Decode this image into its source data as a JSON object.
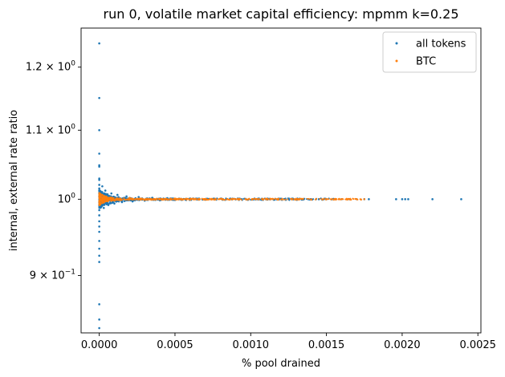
{
  "chart_data": {
    "type": "scatter",
    "title": "run 0, volatile market capital efficiency: mpmm k=0.25",
    "xlabel": "% pool drained",
    "ylabel": "internal, external rate ratio",
    "xlim": [
      -0.00012,
      0.00252
    ],
    "ylim": [
      0.8315,
      1.2665
    ],
    "yscale": "log",
    "x_ticks": [
      {
        "value": 0.0,
        "label": "0.0000"
      },
      {
        "value": 0.0005,
        "label": "0.0005"
      },
      {
        "value": 0.001,
        "label": "0.0010"
      },
      {
        "value": 0.0015,
        "label": "0.0015"
      },
      {
        "value": 0.002,
        "label": "0.0020"
      },
      {
        "value": 0.0025,
        "label": "0.0025"
      }
    ],
    "y_ticks": [
      {
        "value": 0.9,
        "mant": "9",
        "exp": "−1"
      },
      {
        "value": 1.0,
        "mant": "10",
        "exp": "0",
        "plain": true
      },
      {
        "value": 1.1,
        "mant": "1.1",
        "exp": "0"
      },
      {
        "value": 1.2,
        "mant": "1.2",
        "exp": "0"
      }
    ],
    "legend": {
      "position": "upper right",
      "entries": [
        "all tokens",
        "BTC"
      ]
    },
    "series": [
      {
        "name": "all tokens",
        "color": "#1f77b4",
        "points": [
          [
            0.0,
            1.24
          ],
          [
            0.0,
            1.15
          ],
          [
            0.0,
            1.1
          ],
          [
            0.0,
            1.065
          ],
          [
            0.0,
            1.048
          ],
          [
            0.0,
            1.046
          ],
          [
            0.0,
            1.029
          ],
          [
            0.0,
            1.027
          ],
          [
            0.0,
            1.02
          ],
          [
            0.0,
            1.015
          ],
          [
            0.0,
            1.012
          ],
          [
            0.0,
            1.008
          ],
          [
            0.0,
            1.004
          ],
          [
            0.0,
            0.996
          ],
          [
            0.0,
            0.992
          ],
          [
            0.0,
            0.985
          ],
          [
            0.0,
            0.978
          ],
          [
            0.0,
            0.97
          ],
          [
            0.0,
            0.963
          ],
          [
            0.0,
            0.956
          ],
          [
            0.0,
            0.944
          ],
          [
            0.0,
            0.934
          ],
          [
            0.0,
            0.925
          ],
          [
            0.0,
            0.917
          ],
          [
            0.0,
            0.865
          ],
          [
            0.0,
            0.847
          ],
          [
            0.0,
            0.837
          ],
          [
            2e-05,
            1.018
          ],
          [
            3e-05,
            0.988
          ],
          [
            4e-05,
            1.012
          ],
          [
            6e-05,
            0.992
          ],
          [
            8e-05,
            1.008
          ],
          [
            0.0001,
            0.994
          ],
          [
            0.00012,
            1.006
          ],
          [
            0.00015,
            0.996
          ],
          [
            0.00018,
            1.004
          ],
          [
            0.00022,
            0.997
          ],
          [
            0.00026,
            1.003
          ],
          [
            0.0003,
            0.998
          ],
          [
            0.00035,
            1.002
          ],
          [
            0.0004,
            0.9985
          ],
          [
            0.00045,
            1.0015
          ],
          [
            0.0005,
            0.999
          ],
          [
            0.0006,
            1.001
          ],
          [
            0.0007,
            0.9993
          ],
          [
            0.0008,
            1.0007
          ],
          [
            0.0009,
            1.0
          ],
          [
            0.0011,
            1.0
          ],
          [
            0.0012,
            1.0
          ],
          [
            0.00125,
            1.0
          ],
          [
            0.0013,
            1.0
          ],
          [
            0.00135,
            1.0
          ],
          [
            0.0014,
            1.0
          ],
          [
            0.00145,
            1.0
          ],
          [
            0.0015,
            1.0
          ],
          [
            0.00155,
            1.0
          ],
          [
            0.0016,
            1.0
          ],
          [
            0.00165,
            1.0
          ],
          [
            0.0017,
            1.0
          ],
          [
            0.00175,
            1.0
          ],
          [
            0.00178,
            1.0
          ],
          [
            0.00196,
            1.0
          ],
          [
            0.002,
            1.0
          ],
          [
            0.00202,
            1.0
          ],
          [
            0.00204,
            1.0
          ],
          [
            0.0022,
            1.0
          ],
          [
            0.00239,
            1.0
          ]
        ]
      },
      {
        "name": "BTC",
        "color": "#ff7f0e",
        "points": [
          [
            0.0,
            1.006
          ],
          [
            0.0,
            1.003
          ],
          [
            0.0,
            0.997
          ],
          [
            0.0,
            0.994
          ],
          [
            1e-05,
            1.004
          ],
          [
            2e-05,
            0.997
          ],
          [
            5e-05,
            1.003
          ],
          [
            0.0001,
            0.998
          ],
          [
            0.0002,
            1.002
          ],
          [
            0.0003,
            0.999
          ],
          [
            0.0005,
            1.001
          ],
          [
            0.0007,
            1.0
          ],
          [
            0.0009,
            1.0
          ],
          [
            0.0011,
            1.0
          ],
          [
            0.0013,
            1.0
          ],
          [
            0.0015,
            1.0
          ],
          [
            0.0016,
            1.0
          ],
          [
            0.00165,
            1.0
          ],
          [
            0.0017,
            1.0
          ],
          [
            0.00175,
            1.0
          ]
        ],
        "band_xmax": 0.00173
      }
    ],
    "grid": false
  }
}
